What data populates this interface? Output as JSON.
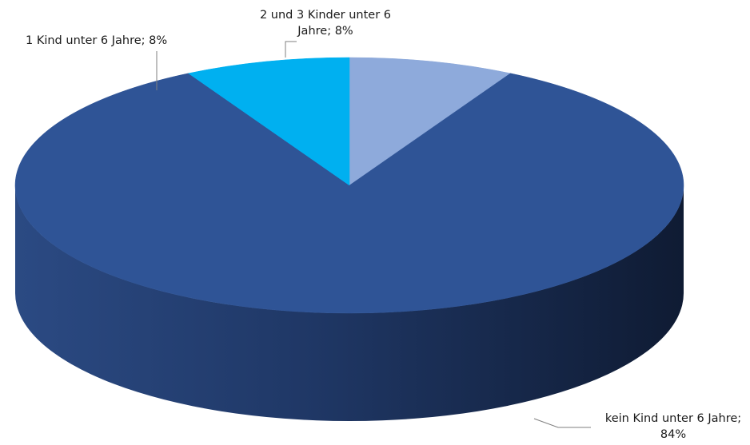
{
  "chart_data": {
    "type": "pie",
    "style": "3d",
    "slices": [
      {
        "label": "2 und 3 Kinder unter 6 Jahre",
        "value": 8,
        "color": "#8eaadb"
      },
      {
        "label": "kein Kind unter 6 Jahre",
        "value": 84,
        "color": "#2f5496"
      },
      {
        "label": "1 Kind unter 6 Jahre",
        "value": 8,
        "color": "#00b0f0"
      }
    ],
    "data_labels": {
      "kein_line1": "kein Kind unter 6 Jahre;",
      "kein_line2": "84%",
      "eins": "1 Kind unter 6 Jahre; 8%",
      "zwei_line1": "2 und 3 Kinder unter 6",
      "zwei_line2": "Jahre; 8%"
    }
  }
}
